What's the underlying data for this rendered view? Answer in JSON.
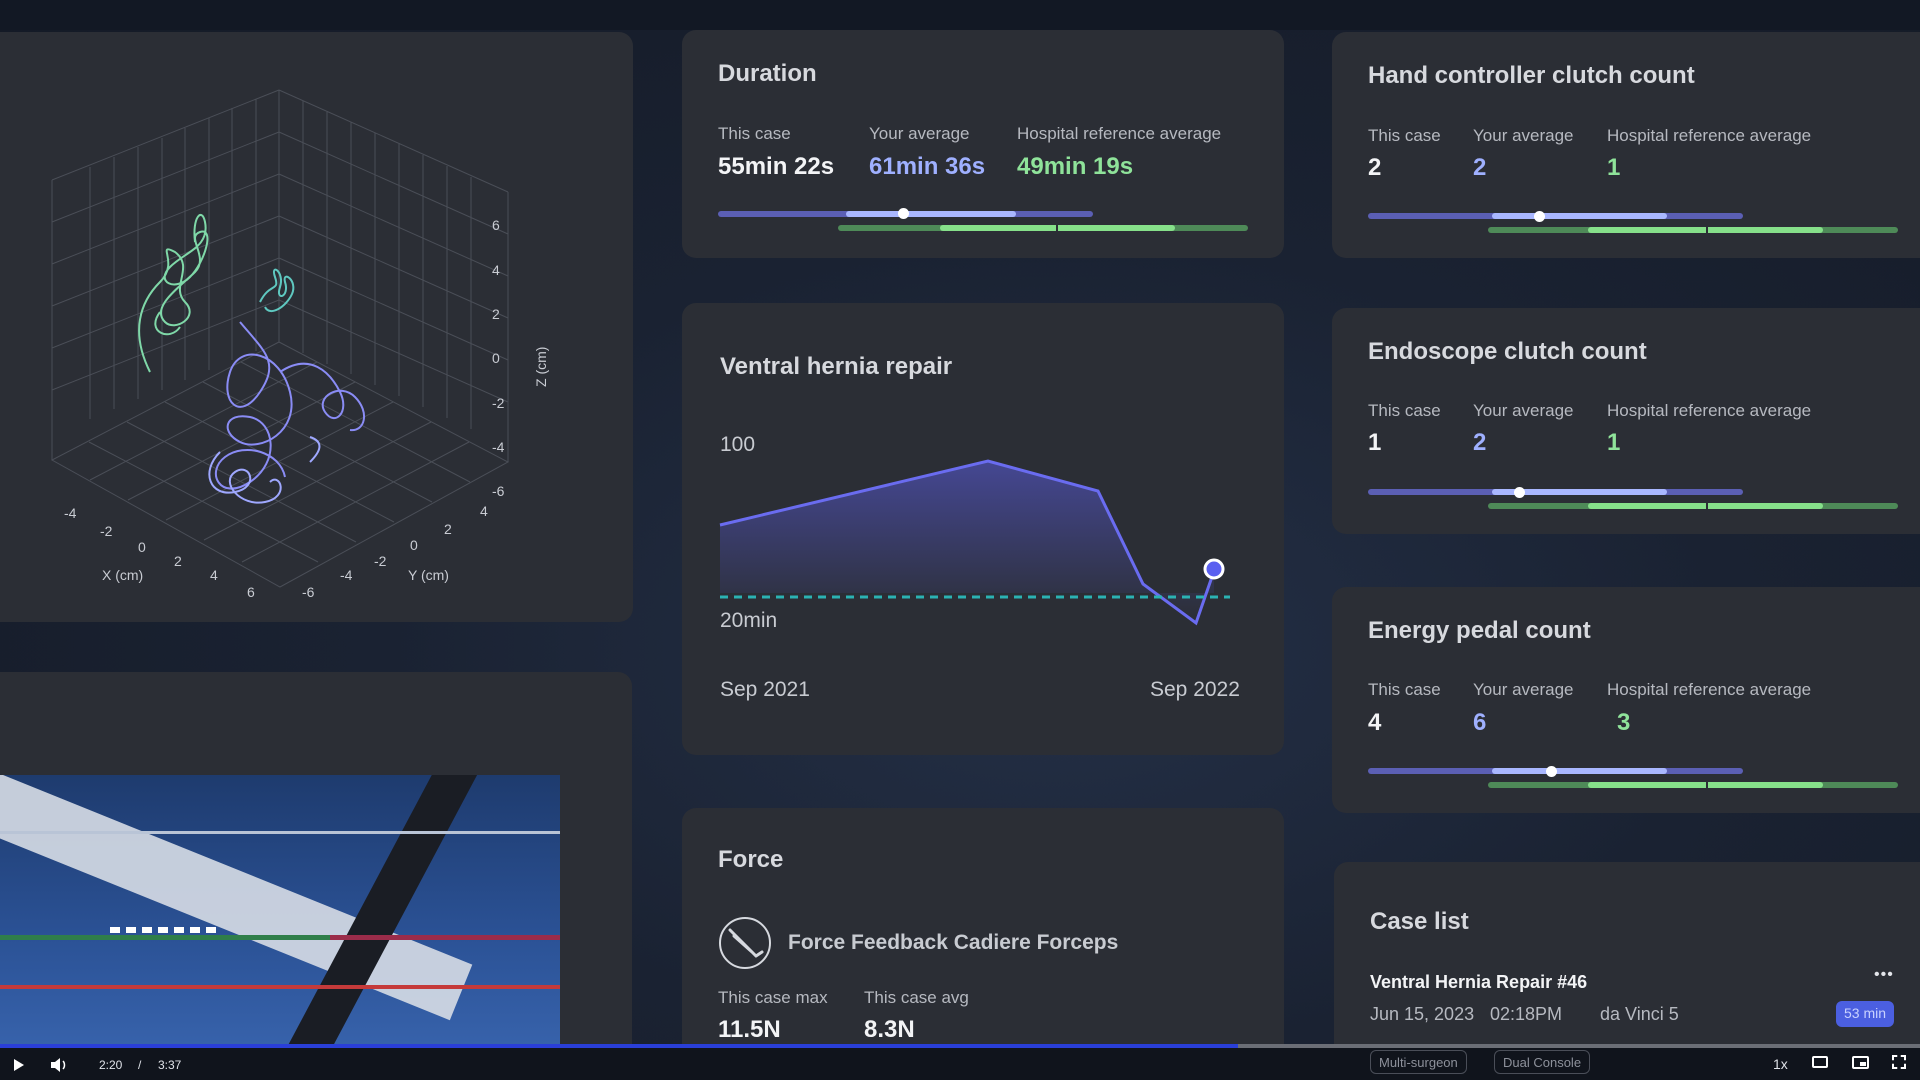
{
  "duration": {
    "title": "Duration",
    "labels": [
      "This case",
      "Your average",
      "Hospital reference average"
    ],
    "this_case": "55min 22s",
    "your_average": "61min 36s",
    "hospital_average": "49min 19s"
  },
  "hand_clutch": {
    "title": "Hand controller clutch count",
    "labels": [
      "This case",
      "Your average",
      "Hospital reference average"
    ],
    "this_case": "2",
    "your_average": "2",
    "hospital_average": "1"
  },
  "endoscope_clutch": {
    "title": "Endoscope clutch count",
    "labels": [
      "This case",
      "Your average",
      "Hospital reference average"
    ],
    "this_case": "1",
    "your_average": "2",
    "hospital_average": "1"
  },
  "energy_pedal": {
    "title": "Energy pedal count",
    "labels": [
      "This case",
      "Your average",
      "Hospital reference average"
    ],
    "this_case": "4",
    "your_average": "6",
    "hospital_average": "3"
  },
  "trend": {
    "title": "Ventral hernia repair",
    "y_top_label": "100",
    "y_ref_label": "20min",
    "x_start": "Sep 2021",
    "x_end": "Sep 2022"
  },
  "force": {
    "title": "Force",
    "instrument": "Force Feedback Cadiere Forceps",
    "max_label": "This case max",
    "max_value": "11.5N",
    "avg_label": "This case avg",
    "avg_value": "8.3N"
  },
  "case_list": {
    "title": "Case list",
    "case_name": "Ventral Hernia Repair #46",
    "date": "Jun 15, 2023",
    "time": "02:18PM",
    "system": "da Vinci 5",
    "duration_badge": "53 min",
    "more": "•••",
    "tags": [
      "Multi-surgeon",
      "Dual Console"
    ]
  },
  "plot3d": {
    "z_label": "Z (cm)",
    "x_label": "X (cm)",
    "y_label": "Y (cm)",
    "z_ticks": [
      "6",
      "4",
      "2",
      "0",
      "-2",
      "-4",
      "-6"
    ],
    "x_ticks": [
      "-4",
      "-2",
      "0",
      "2",
      "4",
      "6"
    ],
    "y_ticks": [
      "4",
      "2",
      "0",
      "-2",
      "-4",
      "-6"
    ]
  },
  "player": {
    "current_time": "2:20",
    "separator": "/",
    "total_time": "3:37",
    "speed": "1x",
    "progress": 0.645
  },
  "colors": {
    "card": "#2b2e35",
    "blue_value": "#9fb0ff",
    "green_value": "#8fe39a",
    "trend_line": "#6a6cf0",
    "reference_line": "#2bb3b3"
  }
}
